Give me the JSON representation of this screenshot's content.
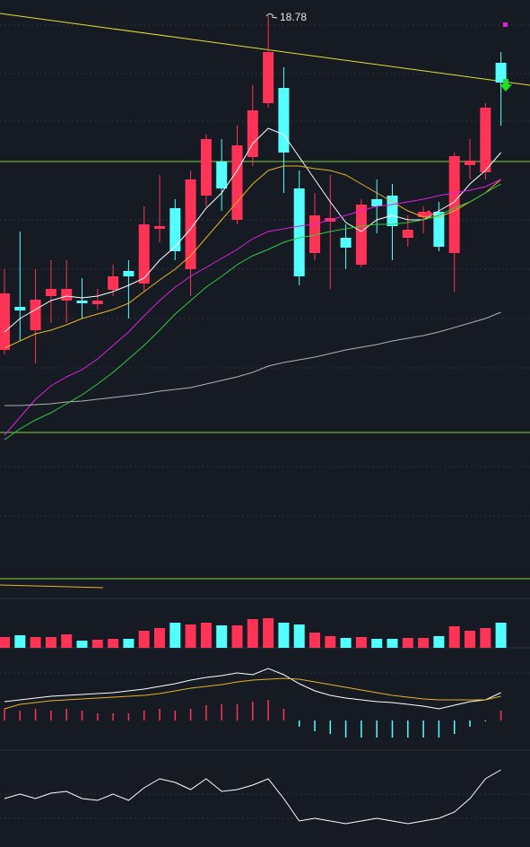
{
  "chart_data": [
    {
      "type": "candlestick",
      "up_color": "#ff3355",
      "down_color": "#54ffff",
      "ylim": [
        6.34,
        19.14
      ],
      "high_label_index": 17,
      "open": [
        11.34,
        12.3,
        11.78,
        12.54,
        12.44,
        12.44,
        12.36,
        12.68,
        13.1,
        12.82,
        14.04,
        14.5,
        13.14,
        14.78,
        15.54,
        14.24,
        15.64,
        16.84,
        17.18,
        14.94,
        13.5,
        14.2,
        13.84,
        13.24,
        14.7,
        14.78,
        13.84,
        14.3,
        14.42,
        13.5,
        15.46,
        15.3,
        17.74
      ],
      "high": [
        13.14,
        13.98,
        13.14,
        13.34,
        13.34,
        12.94,
        12.7,
        13.24,
        13.34,
        14.54,
        15.24,
        14.7,
        15.34,
        16.14,
        16.04,
        16.34,
        17.24,
        18.78,
        17.64,
        15.34,
        14.84,
        15.24,
        14.14,
        14.7,
        15.14,
        15.04,
        14.34,
        14.54,
        14.64,
        15.74,
        16.04,
        16.84,
        17.98
      ],
      "low": [
        11.24,
        11.54,
        11.04,
        11.94,
        11.94,
        12.04,
        12.24,
        12.54,
        12.04,
        12.64,
        13.74,
        13.34,
        12.54,
        14.54,
        14.44,
        14.14,
        15.44,
        16.74,
        14.84,
        12.78,
        13.34,
        12.7,
        13.14,
        13.18,
        13.94,
        13.34,
        13.64,
        13.94,
        13.54,
        12.64,
        15.14,
        15.14,
        16.34
      ],
      "close": [
        12.6,
        12.22,
        12.46,
        12.7,
        12.7,
        12.38,
        12.44,
        12.98,
        12.98,
        14.14,
        14.1,
        13.54,
        15.14,
        16.04,
        14.94,
        15.9,
        16.68,
        17.98,
        15.74,
        12.98,
        14.34,
        14.28,
        13.62,
        14.58,
        14.54,
        14.1,
        14.02,
        14.42,
        13.64,
        15.66,
        15.56,
        16.74,
        17.3
      ],
      "lines": [
        {
          "color": "#ffffff",
          "values": [
            11.74,
            12.04,
            12.24,
            12.44,
            12.54,
            12.5,
            12.54,
            12.64,
            12.78,
            12.94,
            13.34,
            13.64,
            14.04,
            14.5,
            14.84,
            15.34,
            15.94,
            16.28,
            16.14,
            15.64,
            15.14,
            14.64,
            14.18,
            13.98,
            14.24,
            14.34,
            14.24,
            14.24,
            14.44,
            14.64,
            15.04,
            15.34,
            15.74
          ]
        },
        {
          "color": "#e6b422",
          "values": [
            11.38,
            11.54,
            11.7,
            11.78,
            11.9,
            12.04,
            12.14,
            12.24,
            12.38,
            12.64,
            12.9,
            13.14,
            13.44,
            13.84,
            14.24,
            14.64,
            15.04,
            15.34,
            15.44,
            15.44,
            15.38,
            15.34,
            15.24,
            15.04,
            14.84,
            14.64,
            14.44,
            14.3,
            14.3,
            14.44,
            14.64,
            14.84,
            15.14
          ]
        },
        {
          "color": "#e020e0",
          "values": [
            9.44,
            9.84,
            10.24,
            10.54,
            10.74,
            10.9,
            11.14,
            11.44,
            11.74,
            12.1,
            12.44,
            12.74,
            12.98,
            13.18,
            13.38,
            13.58,
            13.82,
            13.98,
            14.04,
            14.1,
            14.14,
            14.24,
            14.34,
            14.44,
            14.54,
            14.58,
            14.64,
            14.7,
            14.78,
            14.84,
            14.9,
            14.98,
            15.14
          ]
        },
        {
          "color": "#2ecc40",
          "values": [
            9.34,
            9.58,
            9.78,
            9.94,
            10.14,
            10.34,
            10.58,
            10.84,
            11.14,
            11.44,
            11.78,
            12.14,
            12.44,
            12.74,
            12.98,
            13.24,
            13.44,
            13.58,
            13.74,
            13.84,
            13.9,
            13.98,
            14.04,
            14.1,
            14.14,
            14.14,
            14.18,
            14.24,
            14.34,
            14.5,
            14.64,
            14.84,
            15.04
          ]
        },
        {
          "color": "#b0b0b0",
          "values": [
            10.1,
            10.1,
            10.12,
            10.14,
            10.18,
            10.2,
            10.24,
            10.28,
            10.32,
            10.36,
            10.42,
            10.46,
            10.5,
            10.58,
            10.66,
            10.74,
            10.84,
            10.98,
            11.06,
            11.12,
            11.18,
            11.26,
            11.34,
            11.4,
            11.46,
            11.54,
            11.6,
            11.66,
            11.74,
            11.84,
            11.94,
            12.04,
            12.18
          ]
        }
      ]
    },
    {
      "type": "bar",
      "ylim": [
        0,
        55
      ],
      "values": [
        12,
        14,
        12,
        12,
        15,
        8,
        9,
        10,
        10,
        19,
        22,
        28,
        26,
        28,
        25,
        25,
        32,
        33,
        28,
        26,
        17,
        13,
        11,
        12,
        10,
        10,
        11,
        11,
        13,
        24,
        19,
        22,
        28
      ]
    },
    {
      "type": "macd",
      "up_color": "#ff3355",
      "down_color": "#54ffff",
      "ylim": [
        -0.32,
        0.63
      ],
      "values": [
        0.13,
        0.11,
        0.13,
        0.11,
        0.13,
        0.11,
        0.08,
        0.08,
        0.08,
        0.11,
        0.13,
        0.11,
        0.13,
        0.17,
        0.18,
        0.18,
        0.21,
        0.23,
        0.13,
        -0.07,
        -0.12,
        -0.15,
        -0.19,
        -0.19,
        -0.19,
        -0.19,
        -0.19,
        -0.19,
        -0.19,
        -0.15,
        -0.07,
        -0.01,
        0.11
      ],
      "lines": [
        {
          "color": "#ffffff",
          "values": [
            0.21,
            0.23,
            0.25,
            0.27,
            0.28,
            0.29,
            0.3,
            0.31,
            0.33,
            0.35,
            0.38,
            0.41,
            0.45,
            0.48,
            0.5,
            0.53,
            0.51,
            0.58,
            0.51,
            0.41,
            0.33,
            0.28,
            0.25,
            0.23,
            0.21,
            0.2,
            0.18,
            0.16,
            0.13,
            0.17,
            0.21,
            0.23,
            0.31
          ]
        },
        {
          "color": "#e6b422",
          "values": [
            0.13,
            0.18,
            0.2,
            0.22,
            0.23,
            0.24,
            0.25,
            0.26,
            0.27,
            0.28,
            0.3,
            0.33,
            0.36,
            0.38,
            0.4,
            0.43,
            0.45,
            0.46,
            0.47,
            0.46,
            0.43,
            0.4,
            0.37,
            0.34,
            0.31,
            0.28,
            0.26,
            0.24,
            0.23,
            0.23,
            0.23,
            0.23,
            0.27
          ]
        }
      ]
    },
    {
      "type": "line",
      "ylim": [
        0,
        106
      ],
      "lines": [
        {
          "color": "#ffffff",
          "values": [
            54,
            59,
            54,
            60,
            62,
            54,
            52,
            59,
            52,
            66,
            76,
            72,
            64,
            76,
            62,
            64,
            69,
            76,
            54,
            29,
            32,
            29,
            26,
            29,
            32,
            29,
            26,
            29,
            32,
            39,
            54,
            76,
            86
          ]
        }
      ]
    }
  ]
}
